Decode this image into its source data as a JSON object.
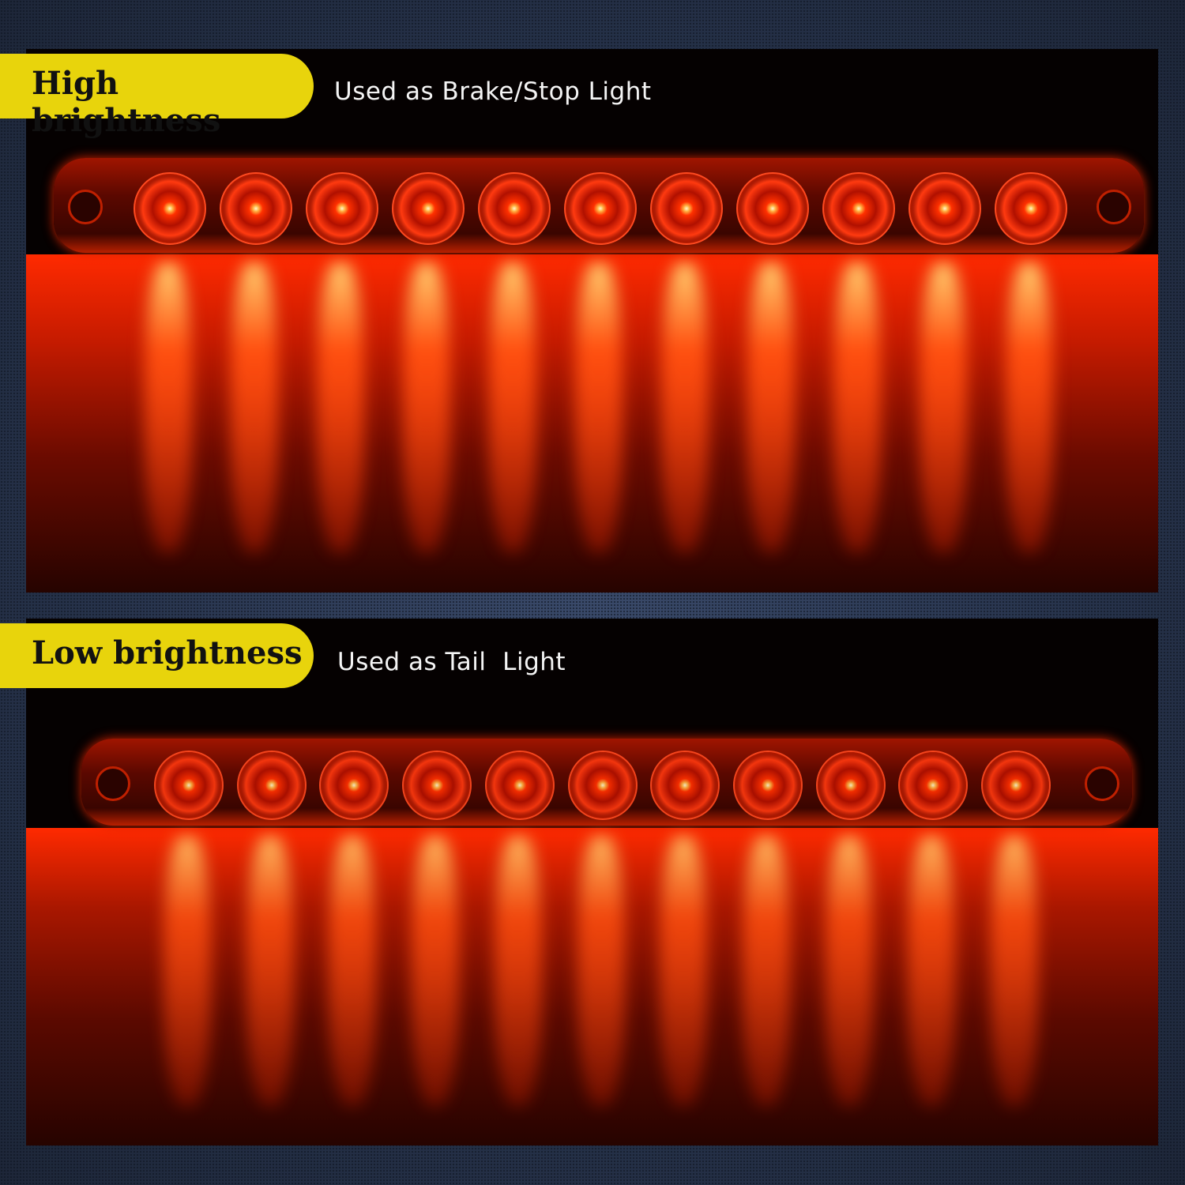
{
  "panels": [
    {
      "badge": "High brightness",
      "caption": "Used as Brake/Stop Light",
      "led_count": 11,
      "brightness": "high"
    },
    {
      "badge": "Low brightness",
      "caption": "Used as Tail  Light",
      "led_count": 11,
      "brightness": "low"
    }
  ],
  "colors": {
    "badge": "#e8d40c",
    "led_red": "#ff3000",
    "background": "#26324a"
  }
}
